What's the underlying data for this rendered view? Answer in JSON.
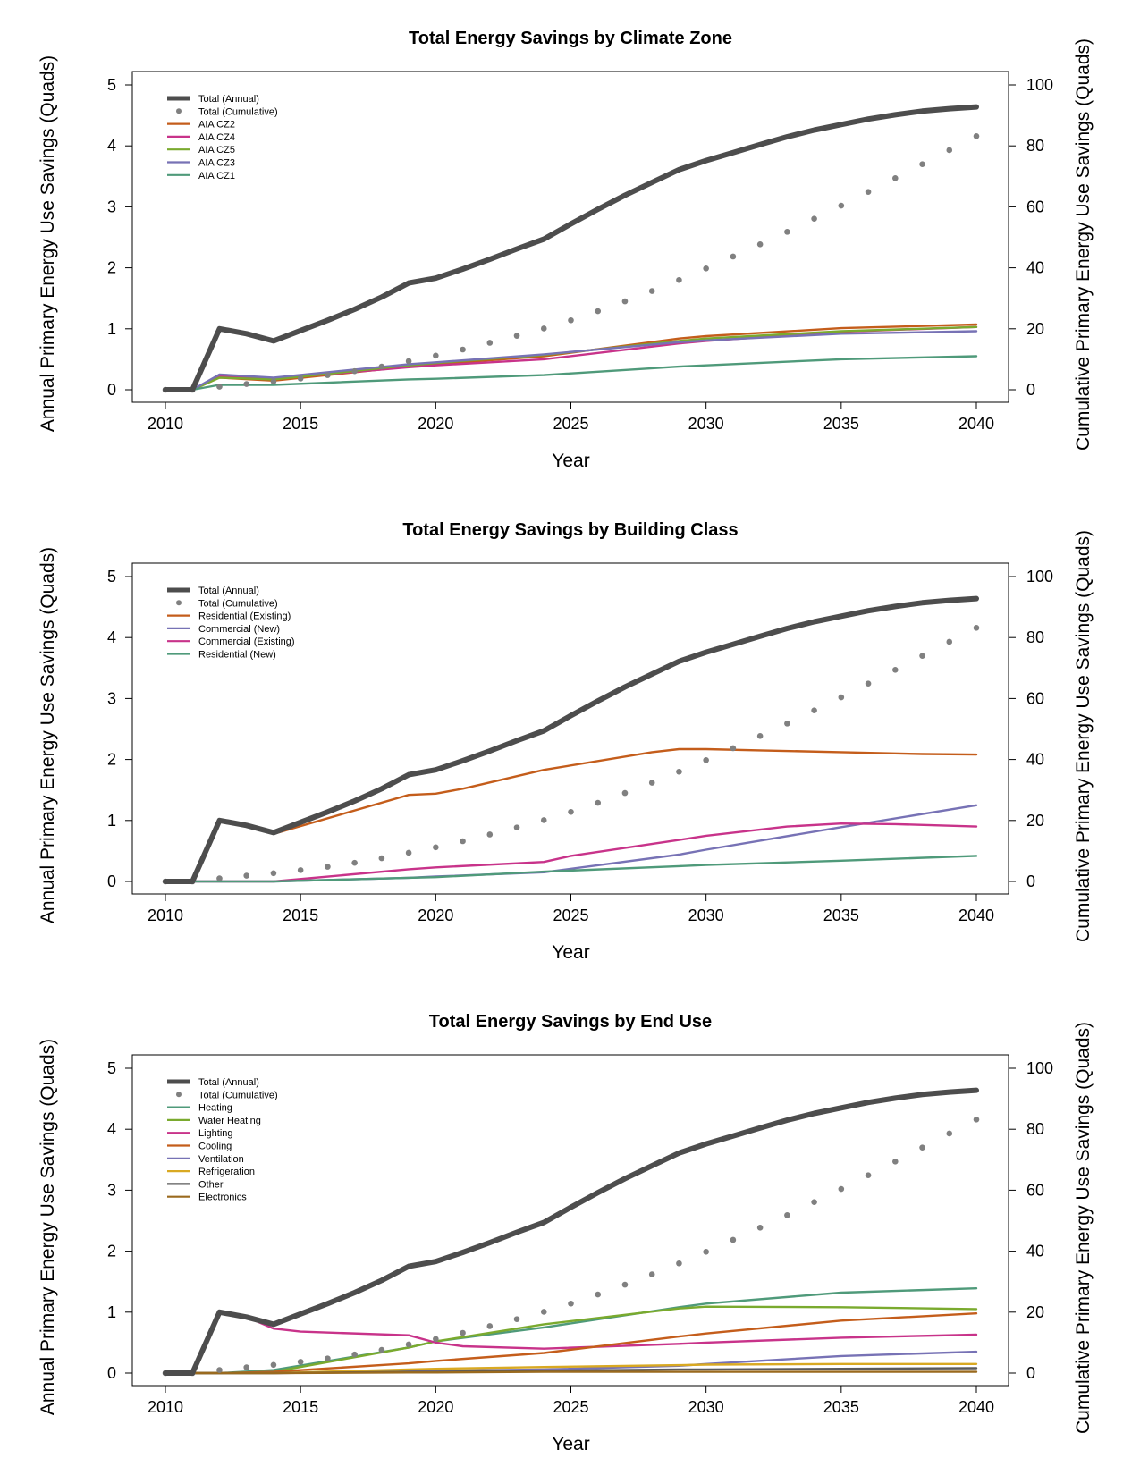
{
  "chart_data": [
    {
      "type": "line",
      "title": "Total Energy Savings by Climate Zone",
      "xlabel": "Year",
      "ylabel": "Annual Primary Energy Use Savings (Quads)",
      "y2label": "Cumulative Primary Energy Use Savings (Quads)",
      "xlim": [
        2010,
        2040
      ],
      "ylim": [
        0,
        5
      ],
      "y2lim": [
        0,
        100
      ],
      "x_ticks": [
        2010,
        2015,
        2020,
        2025,
        2030,
        2035,
        2040
      ],
      "y_ticks": [
        0,
        1,
        2,
        3,
        4,
        5
      ],
      "y2_ticks": [
        0,
        20,
        40,
        60,
        80,
        100
      ],
      "legend_position": "top-left",
      "series": [
        {
          "name": "Total (Annual)",
          "color": "#4d4d4d",
          "style": "thick",
          "axis": "left",
          "x": [
            2010,
            2011,
            2012,
            2013,
            2014,
            2015,
            2016,
            2017,
            2018,
            2019,
            2020,
            2021,
            2022,
            2023,
            2024,
            2025,
            2026,
            2027,
            2028,
            2029,
            2030,
            2031,
            2032,
            2033,
            2034,
            2035,
            2036,
            2037,
            2038,
            2039,
            2040
          ],
          "y": [
            0,
            0,
            1.0,
            0.92,
            0.8,
            0.97,
            1.14,
            1.32,
            1.52,
            1.75,
            1.83,
            1.98,
            2.14,
            2.31,
            2.47,
            2.72,
            2.96,
            3.19,
            3.4,
            3.61,
            3.76,
            3.89,
            4.02,
            4.15,
            4.26,
            4.35,
            4.44,
            4.51,
            4.57,
            4.61,
            4.64
          ]
        },
        {
          "name": "Total (Cumulative)",
          "color": "#808080",
          "style": "dots",
          "axis": "right",
          "x": [
            2010,
            2011,
            2012,
            2013,
            2014,
            2015,
            2016,
            2017,
            2018,
            2019,
            2020,
            2021,
            2022,
            2023,
            2024,
            2025,
            2026,
            2027,
            2028,
            2029,
            2030,
            2031,
            2032,
            2033,
            2034,
            2035,
            2036,
            2037,
            2038,
            2039,
            2040
          ],
          "y": [
            0,
            0,
            1.0,
            1.9,
            2.7,
            3.7,
            4.8,
            6.1,
            7.6,
            9.4,
            11.2,
            13.2,
            15.4,
            17.7,
            20.1,
            22.8,
            25.8,
            29.0,
            32.4,
            36.0,
            39.8,
            43.7,
            47.7,
            51.8,
            56.1,
            60.4,
            64.9,
            69.4,
            74.0,
            78.6,
            83.2
          ]
        },
        {
          "name": "AIA CZ2",
          "color": "#c45d1b",
          "style": "line",
          "axis": "left",
          "x": [
            2010,
            2011,
            2012,
            2014,
            2019,
            2020,
            2024,
            2029,
            2030,
            2035,
            2040
          ],
          "y": [
            0,
            0,
            0.2,
            0.15,
            0.38,
            0.42,
            0.55,
            0.84,
            0.88,
            1.01,
            1.07
          ]
        },
        {
          "name": "AIA CZ4",
          "color": "#c8338a",
          "style": "line",
          "axis": "left",
          "x": [
            2010,
            2011,
            2012,
            2014,
            2019,
            2020,
            2024,
            2029,
            2030,
            2035,
            2040
          ],
          "y": [
            0,
            0,
            0.22,
            0.18,
            0.37,
            0.4,
            0.5,
            0.76,
            0.8,
            0.95,
            1.03
          ]
        },
        {
          "name": "AIA CZ5",
          "color": "#7aaa2e",
          "style": "line",
          "axis": "left",
          "x": [
            2010,
            2011,
            2012,
            2014,
            2019,
            2020,
            2024,
            2029,
            2030,
            2035,
            2040
          ],
          "y": [
            0,
            0,
            0.2,
            0.17,
            0.4,
            0.44,
            0.57,
            0.8,
            0.84,
            0.96,
            1.03
          ]
        },
        {
          "name": "AIA CZ3",
          "color": "#7772b5",
          "style": "line",
          "axis": "left",
          "x": [
            2010,
            2011,
            2012,
            2014,
            2019,
            2020,
            2024,
            2029,
            2030,
            2035,
            2040
          ],
          "y": [
            0,
            0,
            0.25,
            0.2,
            0.42,
            0.45,
            0.58,
            0.78,
            0.81,
            0.92,
            0.96
          ]
        },
        {
          "name": "AIA CZ1",
          "color": "#4f9a7a",
          "style": "line",
          "axis": "left",
          "x": [
            2010,
            2011,
            2012,
            2014,
            2019,
            2020,
            2024,
            2029,
            2030,
            2035,
            2040
          ],
          "y": [
            0,
            0,
            0.08,
            0.08,
            0.17,
            0.18,
            0.24,
            0.38,
            0.4,
            0.5,
            0.55
          ]
        }
      ]
    },
    {
      "type": "line",
      "title": "Total Energy Savings by Building Class",
      "xlabel": "Year",
      "ylabel": "Annual Primary Energy Use Savings (Quads)",
      "y2label": "Cumulative Primary Energy Use Savings (Quads)",
      "xlim": [
        2010,
        2040
      ],
      "ylim": [
        0,
        5
      ],
      "y2lim": [
        0,
        100
      ],
      "x_ticks": [
        2010,
        2015,
        2020,
        2025,
        2030,
        2035,
        2040
      ],
      "y_ticks": [
        0,
        1,
        2,
        3,
        4,
        5
      ],
      "y2_ticks": [
        0,
        20,
        40,
        60,
        80,
        100
      ],
      "legend_position": "top-left",
      "series": [
        {
          "name": "Total (Annual)",
          "color": "#4d4d4d",
          "style": "thick",
          "axis": "left",
          "x": [
            2010,
            2011,
            2012,
            2013,
            2014,
            2015,
            2016,
            2017,
            2018,
            2019,
            2020,
            2021,
            2022,
            2023,
            2024,
            2025,
            2026,
            2027,
            2028,
            2029,
            2030,
            2031,
            2032,
            2033,
            2034,
            2035,
            2036,
            2037,
            2038,
            2039,
            2040
          ],
          "y": [
            0,
            0,
            1.0,
            0.92,
            0.8,
            0.97,
            1.14,
            1.32,
            1.52,
            1.75,
            1.83,
            1.98,
            2.14,
            2.31,
            2.47,
            2.72,
            2.96,
            3.19,
            3.4,
            3.61,
            3.76,
            3.89,
            4.02,
            4.15,
            4.26,
            4.35,
            4.44,
            4.51,
            4.57,
            4.61,
            4.64
          ]
        },
        {
          "name": "Total (Cumulative)",
          "color": "#808080",
          "style": "dots",
          "axis": "right",
          "x": [
            2010,
            2011,
            2012,
            2013,
            2014,
            2015,
            2016,
            2017,
            2018,
            2019,
            2020,
            2021,
            2022,
            2023,
            2024,
            2025,
            2026,
            2027,
            2028,
            2029,
            2030,
            2031,
            2032,
            2033,
            2034,
            2035,
            2036,
            2037,
            2038,
            2039,
            2040
          ],
          "y": [
            0,
            0,
            1.0,
            1.9,
            2.7,
            3.7,
            4.8,
            6.1,
            7.6,
            9.4,
            11.2,
            13.2,
            15.4,
            17.7,
            20.1,
            22.8,
            25.8,
            29.0,
            32.4,
            36.0,
            39.8,
            43.7,
            47.7,
            51.8,
            56.1,
            60.4,
            64.9,
            69.4,
            74.0,
            78.6,
            83.2
          ]
        },
        {
          "name": "Residential (Existing)",
          "color": "#c45d1b",
          "style": "line",
          "axis": "left",
          "x": [
            2010,
            2011,
            2012,
            2013,
            2014,
            2019,
            2020,
            2021,
            2024,
            2028,
            2029,
            2030,
            2032,
            2035,
            2038,
            2040
          ],
          "y": [
            0,
            0,
            1.0,
            0.92,
            0.78,
            1.42,
            1.44,
            1.52,
            1.83,
            2.12,
            2.17,
            2.17,
            2.15,
            2.12,
            2.09,
            2.08
          ]
        },
        {
          "name": "Commercial (New)",
          "color": "#7772b5",
          "style": "line",
          "axis": "left",
          "x": [
            2010,
            2014,
            2019,
            2020,
            2024,
            2029,
            2030,
            2035,
            2040
          ],
          "y": [
            0,
            0,
            0.06,
            0.08,
            0.15,
            0.44,
            0.52,
            0.89,
            1.25
          ]
        },
        {
          "name": "Commercial (Existing)",
          "color": "#c8338a",
          "style": "line",
          "axis": "left",
          "x": [
            2010,
            2014,
            2019,
            2020,
            2024,
            2025,
            2029,
            2030,
            2033,
            2035,
            2037,
            2040
          ],
          "y": [
            0,
            0,
            0.2,
            0.23,
            0.32,
            0.42,
            0.68,
            0.75,
            0.9,
            0.95,
            0.94,
            0.9
          ]
        },
        {
          "name": "Residential (New)",
          "color": "#4f9a7a",
          "style": "line",
          "axis": "left",
          "x": [
            2010,
            2014,
            2019,
            2020,
            2024,
            2029,
            2030,
            2035,
            2040
          ],
          "y": [
            0,
            0,
            0.06,
            0.07,
            0.16,
            0.25,
            0.27,
            0.34,
            0.42
          ]
        }
      ]
    },
    {
      "type": "line",
      "title": "Total Energy Savings by End Use",
      "xlabel": "Year",
      "ylabel": "Annual Primary Energy Use Savings (Quads)",
      "y2label": "Cumulative Primary Energy Use Savings (Quads)",
      "xlim": [
        2010,
        2040
      ],
      "ylim": [
        0,
        5
      ],
      "y2lim": [
        0,
        100
      ],
      "x_ticks": [
        2010,
        2015,
        2020,
        2025,
        2030,
        2035,
        2040
      ],
      "y_ticks": [
        0,
        1,
        2,
        3,
        4,
        5
      ],
      "y2_ticks": [
        0,
        20,
        40,
        60,
        80,
        100
      ],
      "legend_position": "top-left",
      "series": [
        {
          "name": "Total (Annual)",
          "color": "#4d4d4d",
          "style": "thick",
          "axis": "left",
          "x": [
            2010,
            2011,
            2012,
            2013,
            2014,
            2015,
            2016,
            2017,
            2018,
            2019,
            2020,
            2021,
            2022,
            2023,
            2024,
            2025,
            2026,
            2027,
            2028,
            2029,
            2030,
            2031,
            2032,
            2033,
            2034,
            2035,
            2036,
            2037,
            2038,
            2039,
            2040
          ],
          "y": [
            0,
            0,
            1.0,
            0.92,
            0.8,
            0.97,
            1.14,
            1.32,
            1.52,
            1.75,
            1.83,
            1.98,
            2.14,
            2.31,
            2.47,
            2.72,
            2.96,
            3.19,
            3.4,
            3.61,
            3.76,
            3.89,
            4.02,
            4.15,
            4.26,
            4.35,
            4.44,
            4.51,
            4.57,
            4.61,
            4.64
          ]
        },
        {
          "name": "Total (Cumulative)",
          "color": "#808080",
          "style": "dots",
          "axis": "right",
          "x": [
            2010,
            2011,
            2012,
            2013,
            2014,
            2015,
            2016,
            2017,
            2018,
            2019,
            2020,
            2021,
            2022,
            2023,
            2024,
            2025,
            2026,
            2027,
            2028,
            2029,
            2030,
            2031,
            2032,
            2033,
            2034,
            2035,
            2036,
            2037,
            2038,
            2039,
            2040
          ],
          "y": [
            0,
            0,
            1.0,
            1.9,
            2.7,
            3.7,
            4.8,
            6.1,
            7.6,
            9.4,
            11.2,
            13.2,
            15.4,
            17.7,
            20.1,
            22.8,
            25.8,
            29.0,
            32.4,
            36.0,
            39.8,
            43.7,
            47.7,
            51.8,
            56.1,
            60.4,
            64.9,
            69.4,
            74.0,
            78.6,
            83.2
          ]
        },
        {
          "name": "Heating",
          "color": "#4f9a7a",
          "style": "line",
          "axis": "left",
          "x": [
            2010,
            2012,
            2014,
            2019,
            2020,
            2024,
            2029,
            2030,
            2035,
            2040
          ],
          "y": [
            0,
            0,
            0.05,
            0.42,
            0.52,
            0.75,
            1.08,
            1.14,
            1.32,
            1.39
          ]
        },
        {
          "name": "Water Heating",
          "color": "#7aaa2e",
          "style": "line",
          "axis": "left",
          "x": [
            2010,
            2012,
            2014,
            2019,
            2020,
            2024,
            2029,
            2030,
            2035,
            2040
          ],
          "y": [
            0,
            0,
            0.02,
            0.42,
            0.52,
            0.8,
            1.06,
            1.09,
            1.08,
            1.05
          ]
        },
        {
          "name": "Lighting",
          "color": "#c8338a",
          "style": "line",
          "axis": "left",
          "x": [
            2010,
            2011,
            2012,
            2013,
            2014,
            2015,
            2019,
            2020,
            2021,
            2024,
            2029,
            2030,
            2035,
            2040
          ],
          "y": [
            0,
            0,
            1.0,
            0.92,
            0.73,
            0.68,
            0.62,
            0.5,
            0.44,
            0.4,
            0.48,
            0.5,
            0.58,
            0.63
          ]
        },
        {
          "name": "Cooling",
          "color": "#c45d1b",
          "style": "line",
          "axis": "left",
          "x": [
            2010,
            2012,
            2014,
            2019,
            2020,
            2024,
            2029,
            2030,
            2035,
            2040
          ],
          "y": [
            0,
            0,
            0.02,
            0.16,
            0.2,
            0.33,
            0.6,
            0.65,
            0.86,
            0.98
          ]
        },
        {
          "name": "Ventilation",
          "color": "#7772b5",
          "style": "line",
          "axis": "left",
          "x": [
            2010,
            2014,
            2019,
            2020,
            2024,
            2029,
            2030,
            2035,
            2040
          ],
          "y": [
            0,
            0,
            0.03,
            0.04,
            0.06,
            0.12,
            0.15,
            0.28,
            0.35
          ]
        },
        {
          "name": "Refrigeration",
          "color": "#d9a922",
          "style": "line",
          "axis": "left",
          "x": [
            2010,
            2014,
            2019,
            2020,
            2024,
            2029,
            2030,
            2035,
            2040
          ],
          "y": [
            0,
            0,
            0.06,
            0.07,
            0.1,
            0.13,
            0.14,
            0.15,
            0.15
          ]
        },
        {
          "name": "Other",
          "color": "#5a5a5a",
          "style": "line",
          "axis": "left",
          "x": [
            2010,
            2014,
            2019,
            2020,
            2024,
            2029,
            2030,
            2035,
            2040
          ],
          "y": [
            0,
            0,
            0.02,
            0.02,
            0.04,
            0.06,
            0.06,
            0.07,
            0.08
          ]
        },
        {
          "name": "Electronics",
          "color": "#9a6a1e",
          "style": "line",
          "axis": "left",
          "x": [
            2010,
            2014,
            2019,
            2020,
            2024,
            2029,
            2030,
            2035,
            2040
          ],
          "y": [
            0,
            0,
            0.01,
            0.01,
            0.02,
            0.02,
            0.02,
            0.02,
            0.02
          ]
        }
      ]
    }
  ]
}
